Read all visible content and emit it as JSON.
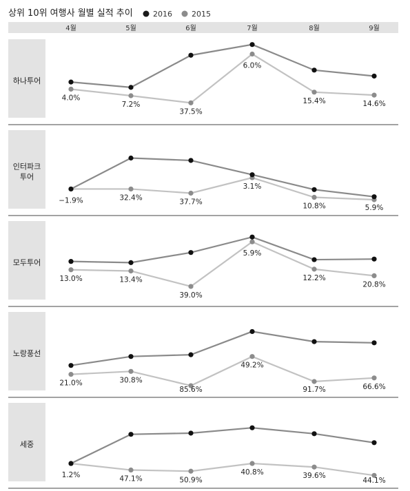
{
  "title": "상위 10위 여행사 월별 실적 추이",
  "legend": [
    {
      "name": "2016",
      "color": "#1a1a1a"
    },
    {
      "name": "2015",
      "color": "#8c8c8c"
    }
  ],
  "months": [
    "4월",
    "5월",
    "6월",
    "7월",
    "8월",
    "9월"
  ],
  "chart_data": {
    "type": "line",
    "title": "상위 10위 여행사 월별 실적 추이",
    "categories": [
      "4월",
      "5월",
      "6월",
      "7월",
      "8월",
      "9월"
    ],
    "legend_position": "top-right",
    "grid": false,
    "colors": {
      "2016_line": "#8a8a8a",
      "2016_marker": "#111111",
      "2015_line": "#c2c2c2",
      "2015_marker": "#8c8c8c",
      "panel_label_bg": "#e3e3e3",
      "divider": "#444444"
    },
    "panels": [
      {
        "label": "하나투어",
        "series_2016": [
          0.67,
          0.58,
          1.12,
          1.3,
          0.87,
          0.77
        ],
        "series_2015": [
          0.55,
          0.44,
          0.32,
          1.14,
          0.5,
          0.45
        ],
        "growth_labels": [
          "4.0%",
          "7.2%",
          "37.5%",
          "6.0%",
          "15.4%",
          "14.6%"
        ]
      },
      {
        "label": "인터파크\n투어",
        "series_2016": [
          0.4,
          0.92,
          0.88,
          0.64,
          0.39,
          0.27
        ],
        "series_2015": [
          0.4,
          0.4,
          0.33,
          0.59,
          0.26,
          0.22
        ],
        "growth_labels": [
          "−1.9%",
          "32.4%",
          "37.7%",
          "3.1%",
          "10.8%",
          "5.9%"
        ]
      },
      {
        "label": "모두투어",
        "series_2016": [
          0.71,
          0.69,
          0.86,
          1.12,
          0.74,
          0.75
        ],
        "series_2015": [
          0.57,
          0.55,
          0.29,
          1.04,
          0.58,
          0.47
        ],
        "growth_labels": [
          "13.0%",
          "13.4%",
          "39.0%",
          "5.9%",
          "12.2%",
          "20.8%"
        ]
      },
      {
        "label": "노랑풍선",
        "series_2016": [
          0.49,
          0.64,
          0.67,
          1.06,
          0.89,
          0.87
        ],
        "series_2015": [
          0.34,
          0.39,
          0.15,
          0.64,
          0.22,
          0.28
        ],
        "growth_labels": [
          "21.0%",
          "30.8%",
          "85.6%",
          "49.2%",
          "91.7%",
          "66.6%"
        ]
      },
      {
        "label": "세중",
        "series_2016": [
          0.37,
          0.86,
          0.88,
          0.97,
          0.87,
          0.72
        ],
        "series_2015": [
          0.37,
          0.26,
          0.24,
          0.37,
          0.31,
          0.17
        ],
        "growth_labels": [
          "1.2%",
          "47.1%",
          "50.9%",
          "40.8%",
          "39.6%",
          "44.1%"
        ]
      }
    ]
  }
}
